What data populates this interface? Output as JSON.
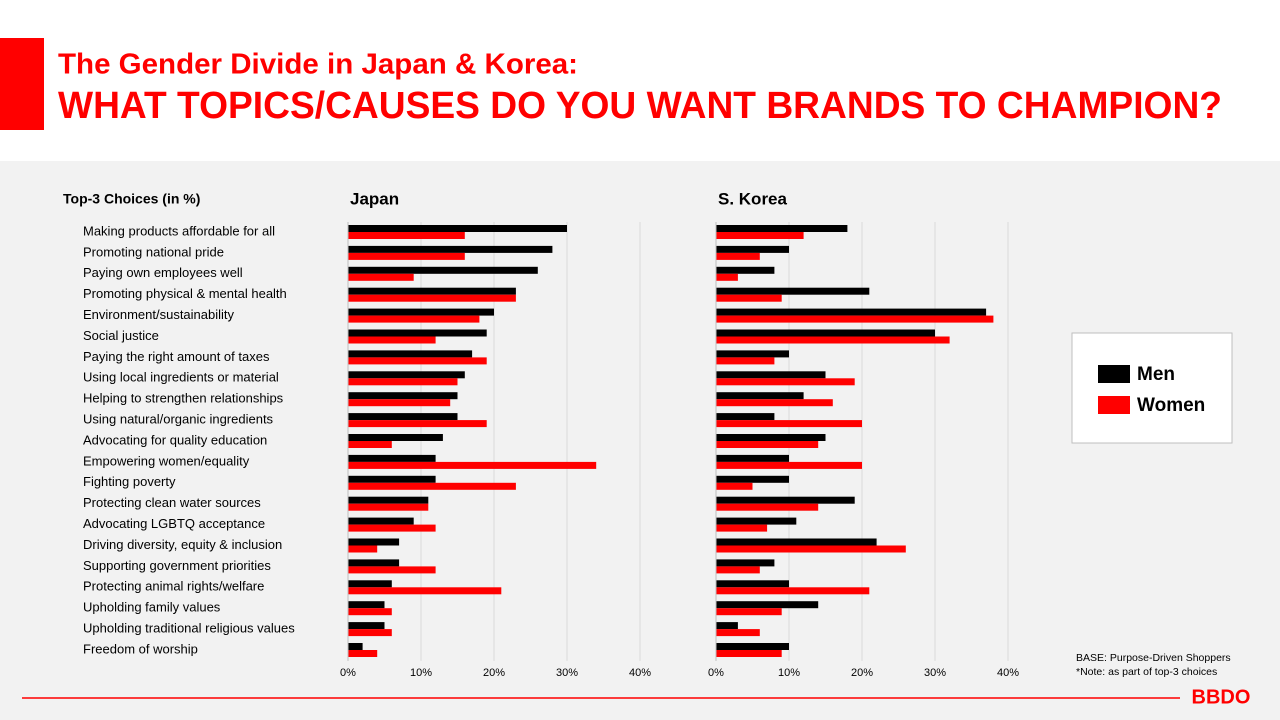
{
  "header": {
    "title": "The Gender Divide in Japan & Korea:",
    "subtitle": "WHAT TOPICS/CAUSES DO YOU WANT BRANDS TO CHAMPION?"
  },
  "axis_label": "Top-3 Choices (in %)",
  "chart_data": [
    {
      "type": "bar",
      "orientation": "horizontal",
      "title": "Japan",
      "categories": [
        "Making products affordable for all",
        "Promoting national pride",
        "Paying own employees well",
        "Promoting physical & mental health",
        "Environment/sustainability",
        "Social justice",
        "Paying the right amount of taxes",
        "Using local ingredients or material",
        "Helping to strengthen relationships",
        "Using natural/organic ingredients",
        "Advocating for quality education",
        "Empowering women/equality",
        "Fighting poverty",
        "Protecting clean water sources",
        "Advocating LGBTQ acceptance",
        "Driving diversity, equity & inclusion",
        "Supporting government priorities",
        "Protecting animal rights/welfare",
        "Upholding family values",
        "Upholding traditional religious values",
        "Freedom of worship"
      ],
      "series": [
        {
          "name": "Men",
          "color": "#000000",
          "values": [
            30,
            28,
            26,
            23,
            20,
            19,
            17,
            16,
            15,
            15,
            13,
            12,
            12,
            11,
            9,
            7,
            7,
            6,
            5,
            5,
            2
          ]
        },
        {
          "name": "Women",
          "color": "#ff0000",
          "values": [
            16,
            16,
            9,
            23,
            18,
            12,
            19,
            15,
            14,
            19,
            6,
            34,
            23,
            11,
            12,
            4,
            12,
            21,
            6,
            6,
            4
          ]
        }
      ],
      "xlim": [
        0,
        40
      ],
      "xticks": [
        {
          "value": 0,
          "label": "0%"
        },
        {
          "value": 10,
          "label": "10%"
        },
        {
          "value": 20,
          "label": "20%"
        },
        {
          "value": 30,
          "label": "30%"
        },
        {
          "value": 40,
          "label": "40%"
        }
      ],
      "grid": true
    },
    {
      "type": "bar",
      "orientation": "horizontal",
      "title": "S. Korea",
      "series": [
        {
          "color": "#000000",
          "values": [
            18,
            10,
            8,
            21,
            37,
            30,
            10,
            15,
            12,
            8,
            15,
            10,
            10,
            19,
            11,
            22,
            8,
            10,
            14,
            3,
            10
          ]
        },
        {
          "color": "#ff0000",
          "values": [
            12,
            6,
            3,
            9,
            38,
            32,
            8,
            19,
            16,
            20,
            14,
            20,
            5,
            14,
            7,
            26,
            6,
            21,
            9,
            6,
            9
          ]
        }
      ],
      "xlim": [
        0,
        40
      ],
      "xticks": [
        {
          "value": 0,
          "label": "0%"
        },
        {
          "value": 10,
          "label": "10%"
        },
        {
          "value": 20,
          "label": "20%"
        },
        {
          "value": 30,
          "label": "30%"
        },
        {
          "value": 40,
          "label": "40%"
        }
      ],
      "grid": true
    }
  ],
  "notes": [
    "BASE: Purpose-Driven Shoppers",
    "*Note: as part of top-3 choices"
  ],
  "logo": "BBDO"
}
